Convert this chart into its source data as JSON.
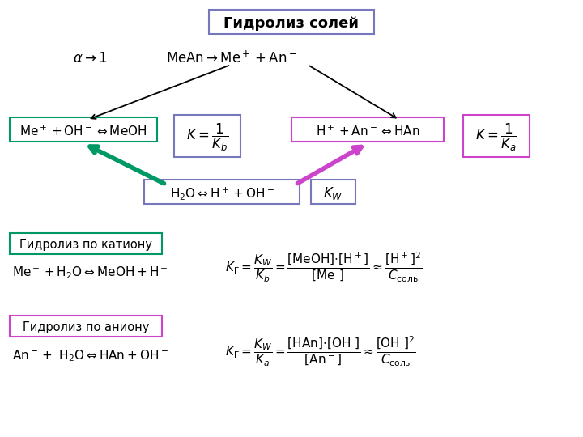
{
  "bg_color": "#ffffff",
  "title_box_color": "#7777bb",
  "green_box_color": "#009966",
  "magenta_box_color": "#cc44cc",
  "blue_box_color": "#7777bb",
  "arrow_green": "#009966",
  "arrow_magenta": "#cc44cc",
  "title": "Гидролиз солей"
}
